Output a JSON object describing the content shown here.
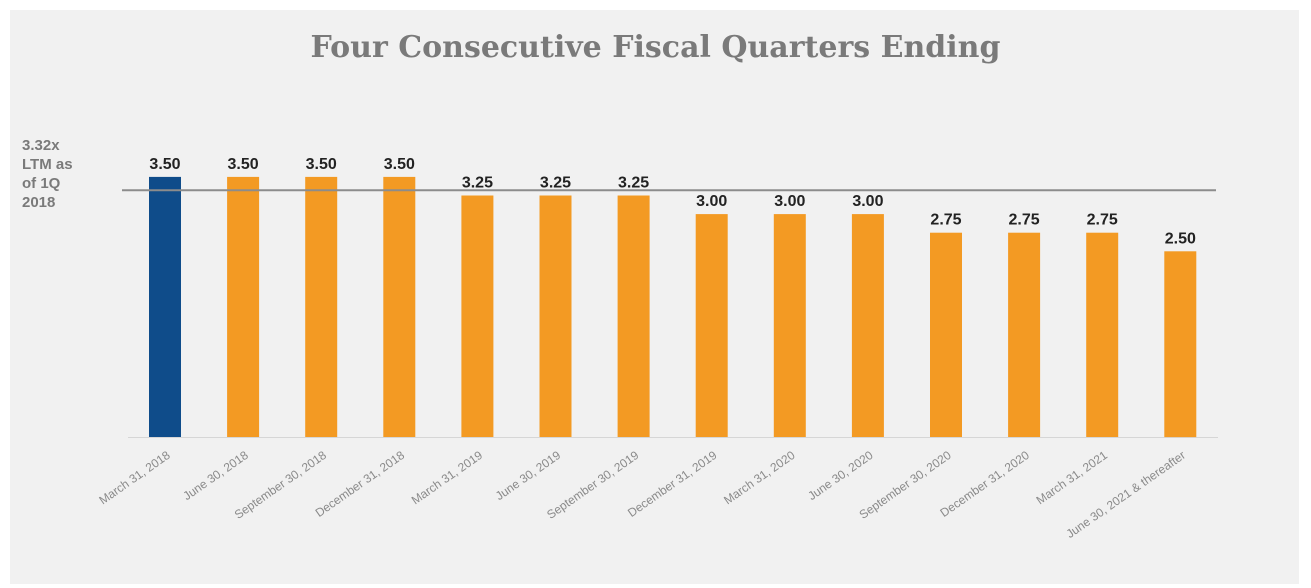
{
  "colors": {
    "highlight_bar": "#0f4c8a",
    "bar": "#f39a23",
    "reference_line": "#8c8c8c",
    "background": "#f1f1f1"
  },
  "chart_data": {
    "type": "bar",
    "title": "Four Consecutive Fiscal Quarters Ending",
    "categories": [
      "March 31, 2018",
      "June 30, 2018",
      "September 30, 2018",
      "December 31, 2018",
      "March 31, 2019",
      "June 30, 2019",
      "September 30, 2019",
      "December 31, 2019",
      "March 31, 2020",
      "June 30, 2020",
      "September 30, 2020",
      "December 31, 2020",
      "March 31, 2021",
      "June 30, 2021 & thereafter"
    ],
    "values": [
      3.5,
      3.5,
      3.5,
      3.5,
      3.25,
      3.25,
      3.25,
      3.0,
      3.0,
      3.0,
      2.75,
      2.75,
      2.75,
      2.5
    ],
    "value_labels": [
      "3.50",
      "3.50",
      "3.50",
      "3.50",
      "3.25",
      "3.25",
      "3.25",
      "3.00",
      "3.00",
      "3.00",
      "2.75",
      "2.75",
      "2.75",
      "2.50"
    ],
    "highlight_index": 0,
    "reference_line": {
      "value": 3.32,
      "label_lines": [
        "3.32x",
        "LTM as",
        "of 1Q",
        "2018"
      ]
    },
    "xlabel": "",
    "ylabel": "",
    "grid": false,
    "legend": "none"
  }
}
